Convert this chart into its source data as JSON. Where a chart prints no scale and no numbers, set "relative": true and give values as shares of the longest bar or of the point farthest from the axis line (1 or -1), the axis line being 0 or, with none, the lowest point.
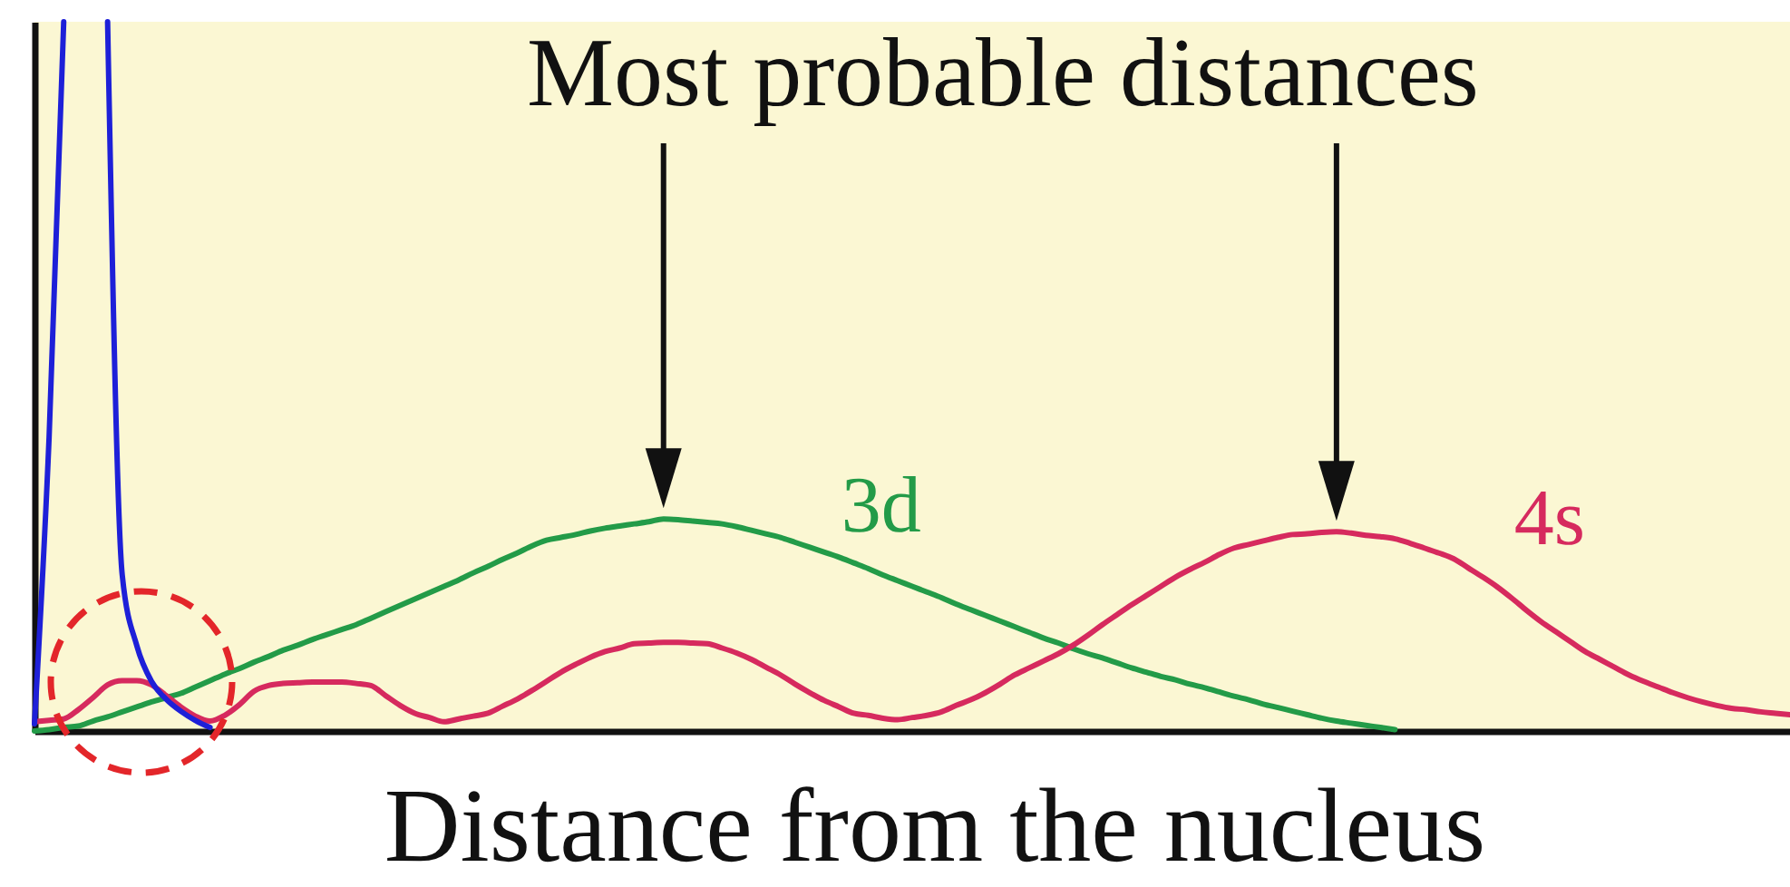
{
  "chart_data": {
    "type": "line",
    "relative": true,
    "annotations": [
      "Most probable distances"
    ],
    "xlabel": "Distance from the nucleus",
    "categories": [
      null,
      null,
      null,
      null,
      null,
      null,
      null,
      null,
      null,
      null,
      null,
      null,
      null,
      null,
      null,
      null,
      null,
      null,
      null,
      null,
      null,
      null,
      null,
      null,
      null,
      null,
      null,
      null,
      null,
      null,
      null,
      null,
      null,
      null,
      null,
      null,
      null,
      null,
      null,
      null,
      null,
      null,
      null,
      null,
      null,
      null,
      null,
      null,
      null,
      null,
      null,
      null,
      null,
      null,
      null,
      null,
      null,
      null,
      null,
      null,
      null,
      null,
      null,
      null,
      null,
      null,
      null,
      null,
      null,
      null,
      null,
      null,
      null,
      null,
      null,
      null,
      null,
      null,
      null,
      null,
      null,
      null,
      null,
      null,
      null,
      null,
      null,
      null,
      null,
      null,
      null,
      null,
      null,
      null,
      null,
      null,
      null,
      null,
      null,
      null,
      null,
      null,
      null,
      null,
      null,
      null,
      null,
      null,
      null,
      null,
      null,
      null,
      null,
      null,
      null,
      null,
      null,
      null,
      null,
      null,
      null
    ],
    "series": [
      {
        "name": "3d",
        "color": "#239b48",
        "values": [
          0,
          0.002,
          0.005,
          0.007,
          0.014,
          0.02,
          0.027,
          0.034,
          0.041,
          0.047,
          0.053,
          0.062,
          0.071,
          0.08,
          0.088,
          0.097,
          0.105,
          0.114,
          0.121,
          0.129,
          0.136,
          0.143,
          0.15,
          0.159,
          0.168,
          0.177,
          0.186,
          0.195,
          0.204,
          0.213,
          0.223,
          0.232,
          0.242,
          0.251,
          0.261,
          0.269,
          0.273,
          0.277,
          0.282,
          0.286,
          0.289,
          0.292,
          0.295,
          0.299,
          0.298,
          0.296,
          0.294,
          0.292,
          0.288,
          0.283,
          0.278,
          0.273,
          0.266,
          0.259,
          0.252,
          0.245,
          0.237,
          0.229,
          0.22,
          0.212,
          0.204,
          0.196,
          0.188,
          0.179,
          0.171,
          0.163,
          0.155,
          0.147,
          0.139,
          0.131,
          0.124,
          0.116,
          0.109,
          0.103,
          0.096,
          0.089,
          0.083,
          0.077,
          0.072,
          0.066,
          0.061,
          0.055,
          0.049,
          0.044,
          0.038,
          0.033,
          0.028,
          0.023,
          0.018,
          0.014,
          0.011,
          0.008,
          0.005,
          0.002,
          null,
          null,
          null,
          null,
          null,
          null,
          null,
          null,
          null,
          null,
          null,
          null,
          null,
          null,
          null,
          null,
          null,
          null,
          null,
          null,
          null,
          null,
          null,
          null,
          null,
          null,
          null
        ]
      },
      {
        "name": "4s",
        "color": "#d62a5e",
        "values": [
          0.013,
          0.015,
          0.017,
          0.03,
          0.047,
          0.065,
          0.071,
          0.071,
          0.065,
          0.05,
          0.034,
          0.021,
          0.014,
          0.022,
          0.037,
          0.056,
          0.064,
          0.067,
          0.068,
          0.069,
          0.069,
          0.069,
          0.067,
          0.064,
          0.05,
          0.036,
          0.025,
          0.019,
          0.013,
          0.017,
          0.021,
          0.025,
          0.035,
          0.045,
          0.057,
          0.07,
          0.083,
          0.094,
          0.104,
          0.112,
          0.117,
          0.123,
          0.124,
          0.125,
          0.125,
          0.124,
          0.123,
          0.117,
          0.11,
          0.101,
          0.09,
          0.079,
          0.066,
          0.054,
          0.043,
          0.034,
          0.025,
          0.022,
          0.018,
          0.016,
          0.019,
          0.022,
          0.027,
          0.036,
          0.044,
          0.054,
          0.066,
          0.079,
          0.089,
          0.099,
          0.109,
          0.121,
          0.135,
          0.15,
          0.164,
          0.178,
          0.191,
          0.204,
          0.217,
          0.228,
          0.238,
          0.249,
          0.258,
          0.263,
          0.268,
          0.273,
          0.277,
          0.278,
          0.28,
          0.281,
          0.279,
          0.276,
          0.274,
          0.271,
          0.265,
          0.258,
          0.251,
          0.243,
          0.23,
          0.217,
          0.203,
          0.187,
          0.17,
          0.154,
          0.14,
          0.126,
          0.112,
          0.101,
          0.09,
          0.079,
          0.07,
          0.062,
          0.054,
          0.047,
          0.041,
          0.036,
          0.032,
          0.03,
          0.027,
          0.025,
          0.023
        ]
      },
      {
        "color": "#1e20d8",
        "values": [
          0.01,
          0.414,
          1,
          null,
          null,
          1,
          0.22,
          0.12,
          0.07,
          0.045,
          0.028,
          0.015,
          0.005,
          null,
          null,
          null,
          null,
          null,
          null,
          null,
          null,
          null,
          null,
          null,
          null,
          null,
          null,
          null,
          null,
          null,
          null,
          null,
          null,
          null,
          null,
          null,
          null,
          null,
          null,
          null,
          null,
          null,
          null,
          null,
          null,
          null,
          null,
          null,
          null,
          null,
          null,
          null,
          null,
          null,
          null,
          null,
          null,
          null,
          null,
          null,
          null,
          null,
          null,
          null,
          null,
          null,
          null,
          null,
          null,
          null,
          null,
          null,
          null,
          null,
          null,
          null,
          null,
          null,
          null,
          null,
          null,
          null,
          null,
          null,
          null,
          null,
          null,
          null,
          null,
          null,
          null,
          null,
          null,
          null,
          null,
          null,
          null,
          null,
          null,
          null,
          null,
          null,
          null,
          null,
          null,
          null,
          null,
          null,
          null,
          null,
          null,
          null,
          null,
          null,
          null,
          null,
          null,
          null,
          null,
          null,
          null
        ]
      }
    ]
  }
}
